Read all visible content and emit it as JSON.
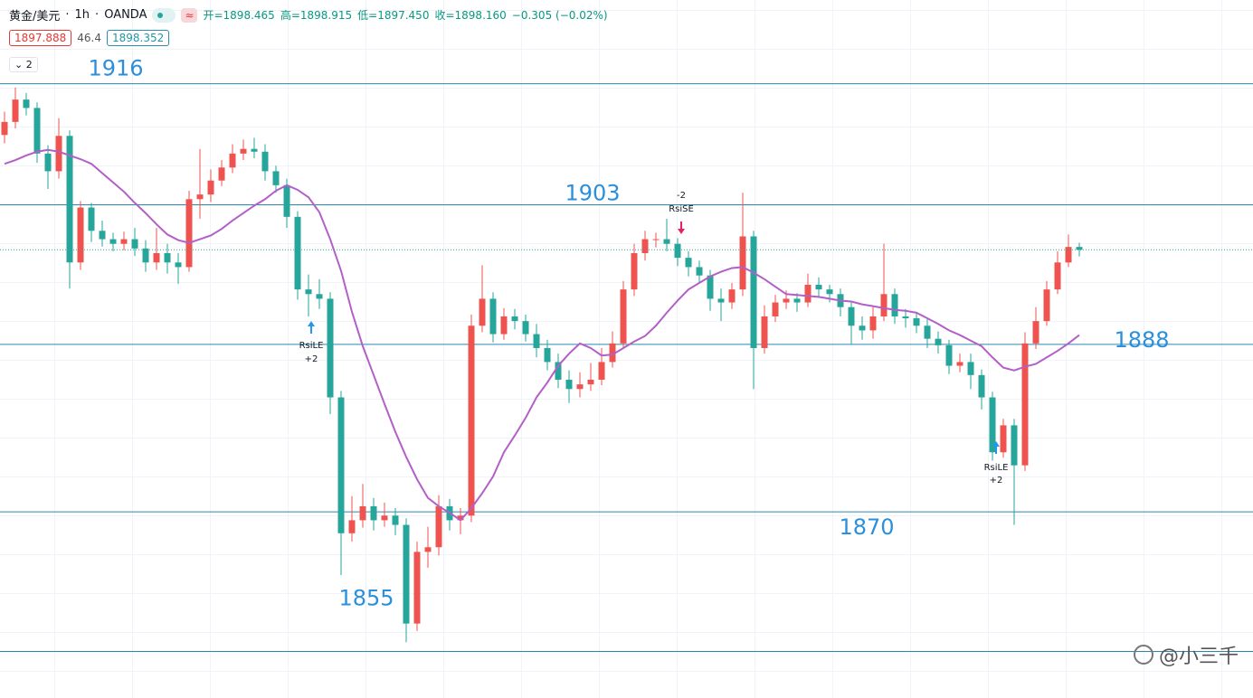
{
  "header": {
    "symbol": "黄金/美元",
    "interval": "1h",
    "source": "OANDA",
    "ohlc_text": [
      "开=1898.465",
      "高=1898.915",
      "低=1897.450",
      "收=1898.160",
      "−0.305 (−0.02%)"
    ],
    "bid": "1897.888",
    "spread": "46.4",
    "ask": "1898.352",
    "indicator_count": "2"
  },
  "watermark": "@小三千",
  "chart_data": {
    "type": "candlestick",
    "ylim": [
      1850,
      1925
    ],
    "up_color": "#ef5350",
    "down_color": "#26a69a",
    "ma_color": "#b35fc8",
    "level_color": "#2a86b0",
    "level_label_color": "#2a8fdc",
    "levels": [
      1916,
      1903,
      1888,
      1870,
      1855
    ],
    "open": [
      1910.5,
      1911.9,
      1914.3,
      1913.4,
      1908.5,
      1906.6,
      1910.4,
      1896.8,
      1902.7,
      1900.2,
      1899.3,
      1898.8,
      1899.3,
      1898.3,
      1896.8,
      1897.8,
      1896.8,
      1896.3,
      1903.6,
      1904.1,
      1905.6,
      1907.0,
      1908.5,
      1909.0,
      1908.7,
      1906.6,
      1905.1,
      1901.7,
      1893.9,
      1893.4,
      1892.9,
      1882.3,
      1867.7,
      1869.1,
      1870.6,
      1869.1,
      1869.6,
      1868.6,
      1858.0,
      1865.7,
      1866.2,
      1870.6,
      1869.1,
      1869.6,
      1890.0,
      1892.9,
      1889.1,
      1891.0,
      1890.5,
      1889.1,
      1887.6,
      1886.1,
      1884.2,
      1883.2,
      1883.7,
      1884.2,
      1886.1,
      1888.1,
      1893.9,
      1897.8,
      1899.3,
      1899.3,
      1898.8,
      1897.3,
      1896.3,
      1895.4,
      1892.9,
      1892.5,
      1893.9,
      1899.6,
      1887.6,
      1891.0,
      1892.5,
      1892.9,
      1892.5,
      1894.4,
      1893.9,
      1893.4,
      1892.0,
      1890.0,
      1889.5,
      1891.0,
      1893.4,
      1891.0,
      1890.8,
      1890.0,
      1888.6,
      1887.9,
      1885.7,
      1886.1,
      1884.7,
      1882.3,
      1876.4,
      1879.3,
      1875.0,
      1888.1,
      1890.5,
      1893.9,
      1896.8,
      1898.465
    ],
    "high": [
      1913.0,
      1915.6,
      1915.0,
      1914.0,
      1909.4,
      1912.3,
      1911.0,
      1903.4,
      1903.2,
      1901.3,
      1900.0,
      1900.1,
      1900.5,
      1899.2,
      1900.5,
      1898.8,
      1897.8,
      1904.5,
      1909.0,
      1906.8,
      1907.8,
      1909.5,
      1910.0,
      1910.2,
      1909.5,
      1907.2,
      1905.8,
      1902.3,
      1895.5,
      1895.0,
      1893.6,
      1883.0,
      1871.7,
      1873.0,
      1871.5,
      1871.0,
      1870.4,
      1869.3,
      1866.8,
      1868.4,
      1871.8,
      1871.4,
      1870.4,
      1891.2,
      1896.5,
      1893.6,
      1891.9,
      1891.8,
      1891.2,
      1890.2,
      1888.5,
      1887.0,
      1885.2,
      1885.0,
      1886.0,
      1887.6,
      1889.4,
      1894.8,
      1898.8,
      1900.2,
      1900.0,
      1901.5,
      1899.4,
      1898.0,
      1897.0,
      1896.0,
      1894.0,
      1894.6,
      1904.3,
      1900.2,
      1892.2,
      1893.3,
      1893.8,
      1893.5,
      1895.6,
      1895.2,
      1894.4,
      1894.0,
      1892.6,
      1891.0,
      1892.0,
      1898.8,
      1894.0,
      1891.8,
      1891.5,
      1890.8,
      1889.4,
      1888.5,
      1887.0,
      1887.0,
      1885.3,
      1882.9,
      1880.0,
      1880.0,
      1889.3,
      1892.0,
      1894.8,
      1898.0,
      1899.8,
      1898.915
    ],
    "low": [
      1909.6,
      1911.2,
      1912.6,
      1907.5,
      1904.7,
      1905.8,
      1894.0,
      1896.0,
      1899.0,
      1898.5,
      1898.0,
      1898.1,
      1897.5,
      1895.8,
      1896.0,
      1895.6,
      1894.5,
      1895.8,
      1901.5,
      1903.3,
      1905.0,
      1906.4,
      1907.8,
      1908.0,
      1905.6,
      1904.3,
      1900.5,
      1892.8,
      1891.0,
      1891.8,
      1880.5,
      1863.2,
      1866.8,
      1868.3,
      1868.0,
      1868.4,
      1867.5,
      1856.0,
      1857.2,
      1864.0,
      1865.3,
      1868.0,
      1867.6,
      1868.9,
      1889.3,
      1888.2,
      1888.5,
      1889.6,
      1888.3,
      1886.6,
      1885.2,
      1883.3,
      1881.7,
      1882.3,
      1883.0,
      1883.6,
      1885.5,
      1887.5,
      1893.2,
      1897.0,
      1898.4,
      1898.0,
      1896.4,
      1895.3,
      1894.5,
      1891.6,
      1890.5,
      1891.8,
      1893.2,
      1883.2,
      1887.0,
      1890.4,
      1891.8,
      1891.5,
      1892.0,
      1893.0,
      1892.5,
      1891.0,
      1888.0,
      1888.5,
      1888.6,
      1890.5,
      1890.2,
      1889.8,
      1889.2,
      1887.6,
      1887.0,
      1884.8,
      1885.0,
      1883.2,
      1881.0,
      1875.5,
      1875.8,
      1868.6,
      1874.4,
      1887.5,
      1890.0,
      1893.4,
      1896.3,
      1897.45
    ],
    "close": [
      1911.9,
      1914.3,
      1913.4,
      1908.5,
      1906.6,
      1910.4,
      1896.8,
      1902.7,
      1900.2,
      1899.3,
      1898.8,
      1899.3,
      1898.3,
      1896.8,
      1897.8,
      1896.8,
      1896.3,
      1903.6,
      1904.1,
      1905.6,
      1907.0,
      1908.5,
      1909.0,
      1908.7,
      1906.6,
      1905.1,
      1901.7,
      1893.9,
      1893.4,
      1892.9,
      1882.3,
      1867.7,
      1869.1,
      1870.6,
      1869.1,
      1869.6,
      1868.6,
      1858.0,
      1865.7,
      1866.2,
      1870.6,
      1869.1,
      1869.6,
      1890.0,
      1892.9,
      1889.1,
      1891.0,
      1890.5,
      1889.1,
      1887.6,
      1886.1,
      1884.2,
      1883.2,
      1883.7,
      1884.2,
      1886.1,
      1888.1,
      1893.9,
      1897.8,
      1899.3,
      1899.3,
      1898.8,
      1897.3,
      1896.3,
      1895.4,
      1892.9,
      1892.5,
      1893.9,
      1899.6,
      1887.6,
      1891.0,
      1892.5,
      1892.9,
      1892.5,
      1894.4,
      1893.9,
      1893.4,
      1892.0,
      1890.0,
      1889.5,
      1891.0,
      1893.4,
      1891.0,
      1890.8,
      1890.0,
      1888.6,
      1887.9,
      1885.7,
      1886.1,
      1884.7,
      1882.3,
      1876.4,
      1879.3,
      1875.0,
      1888.1,
      1890.5,
      1893.9,
      1896.8,
      1898.465,
      1898.16
    ],
    "ma": [
      1907.4,
      1907.8,
      1908.3,
      1908.7,
      1908.9,
      1908.7,
      1908.3,
      1907.9,
      1907.4,
      1906.4,
      1905.4,
      1904.4,
      1903.2,
      1902.1,
      1900.9,
      1899.8,
      1899.2,
      1898.9,
      1899.3,
      1899.7,
      1900.4,
      1901.3,
      1902.1,
      1902.9,
      1903.6,
      1904.5,
      1905.1,
      1904.6,
      1903.8,
      1902.2,
      1899.3,
      1895.9,
      1891.5,
      1887.8,
      1884.7,
      1881.6,
      1878.6,
      1875.9,
      1873.5,
      1871.5,
      1870.6,
      1869.9,
      1869.1,
      1870.4,
      1872.0,
      1873.8,
      1876.4,
      1878.2,
      1880.1,
      1882.3,
      1883.9,
      1885.7,
      1887.0,
      1888.1,
      1887.6,
      1886.8,
      1886.9,
      1887.6,
      1888.3,
      1888.9,
      1890.0,
      1891.4,
      1892.7,
      1893.9,
      1894.6,
      1895.3,
      1895.8,
      1896.2,
      1896.3,
      1895.7,
      1895.0,
      1894.2,
      1893.4,
      1893.3,
      1893.2,
      1893.1,
      1892.9,
      1892.7,
      1892.6,
      1892.3,
      1892.1,
      1891.9,
      1891.7,
      1891.6,
      1891.4,
      1890.8,
      1890.2,
      1889.5,
      1889.0,
      1888.4,
      1887.8,
      1886.6,
      1885.5,
      1885.2,
      1885.6,
      1885.9,
      1886.6,
      1887.3,
      1888.1,
      1889.0
    ],
    "signals": [
      {
        "label": "RsiLE",
        "qty": "+2"
      },
      {
        "label": "RsiSE",
        "qty": "-2"
      },
      {
        "label": "RsiLE",
        "qty": "+2"
      }
    ]
  }
}
